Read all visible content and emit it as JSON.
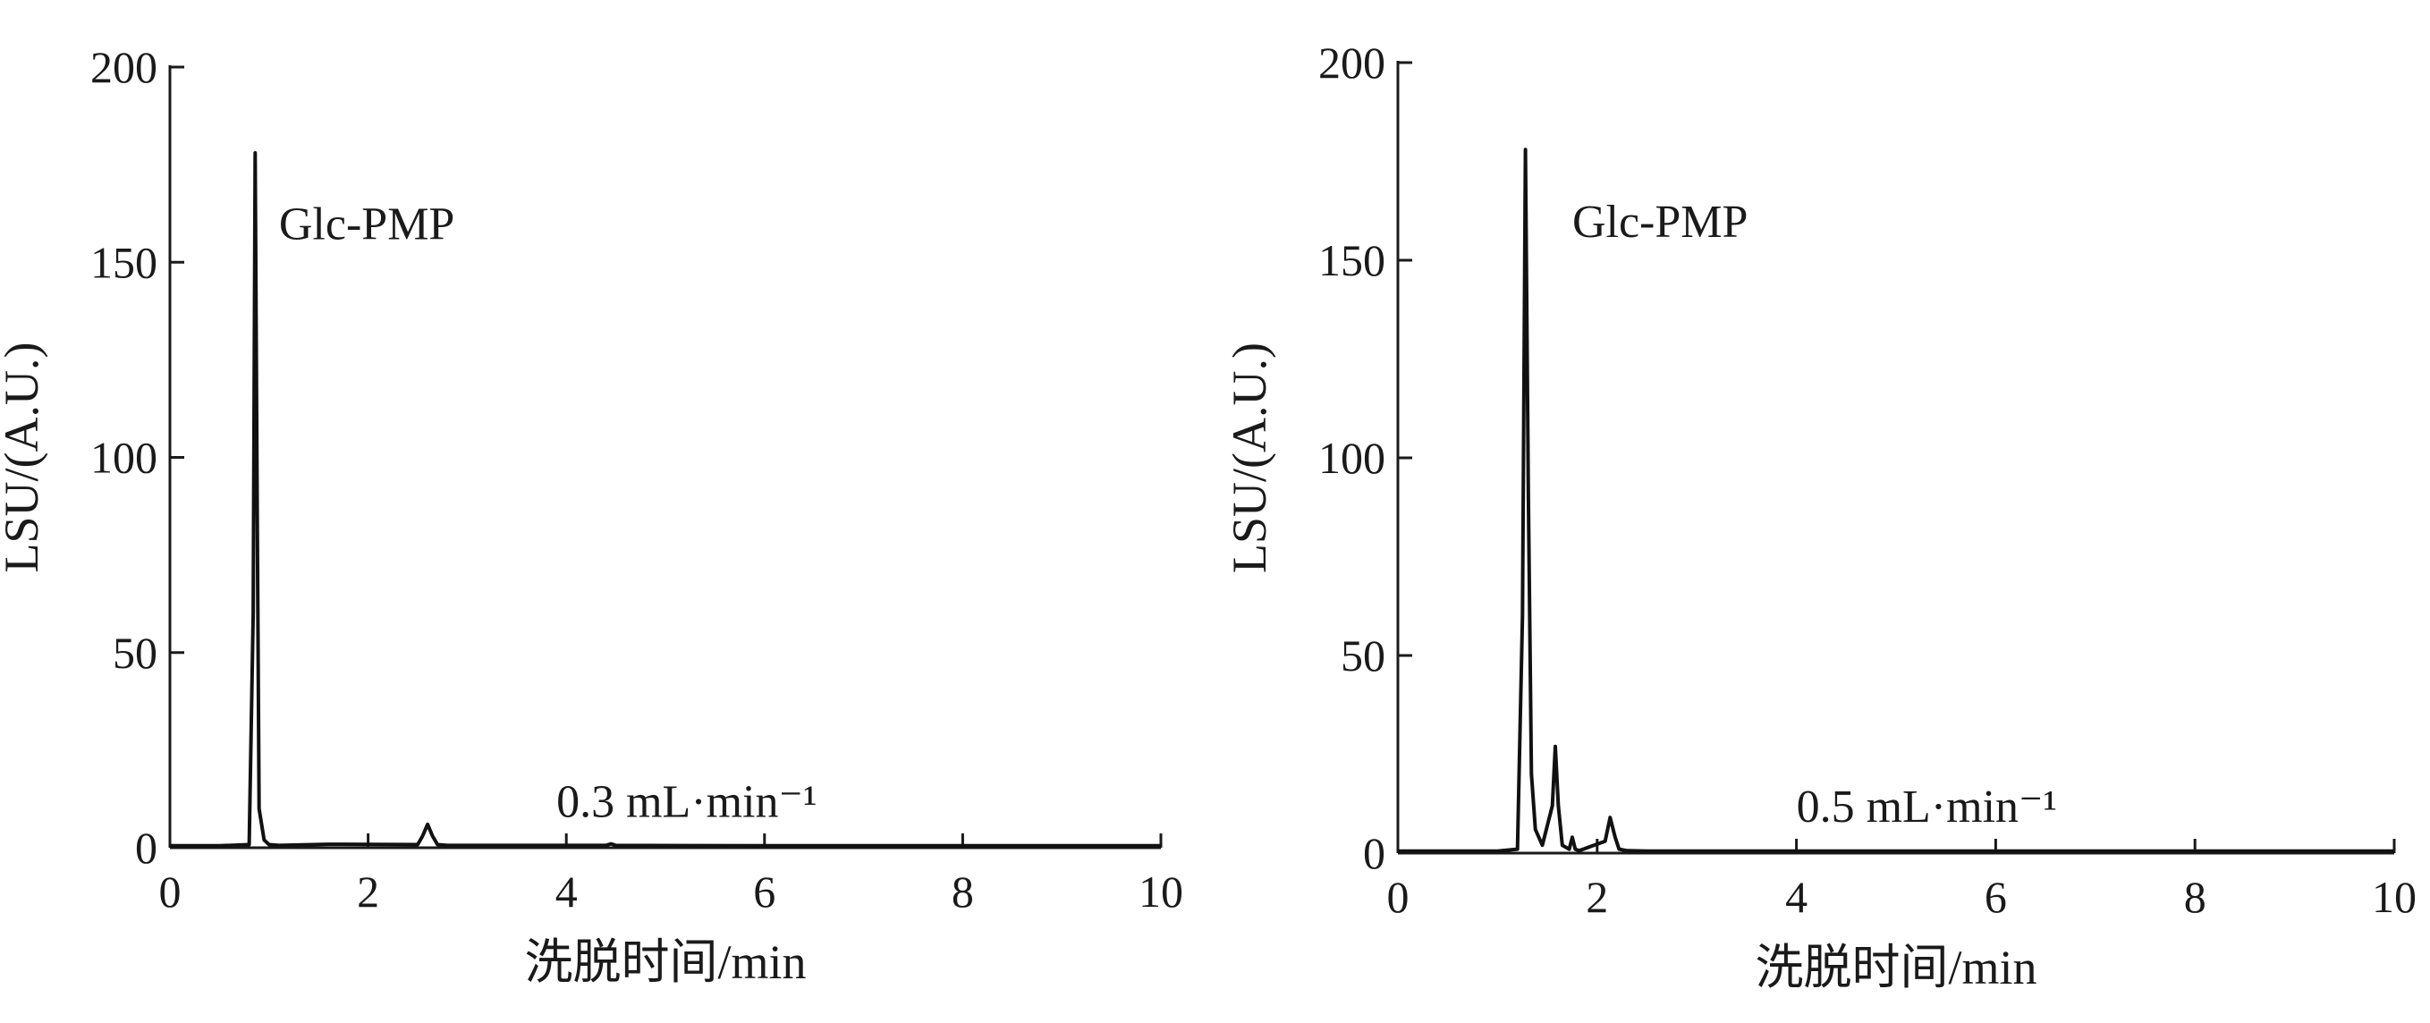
{
  "chart_data": [
    {
      "type": "line",
      "title": "",
      "xlabel": "洗脱时间/min",
      "ylabel": "LSU/(A.U.)",
      "xlim": [
        0,
        10
      ],
      "ylim": [
        0,
        200
      ],
      "xticks": [
        0,
        2,
        4,
        6,
        8,
        10
      ],
      "yticks": [
        0,
        50,
        100,
        150,
        200
      ],
      "grid": false,
      "line_color": "#111111",
      "annotations": [
        {
          "text": "Glc-PMP",
          "x": 1.1,
          "y": 160
        },
        {
          "text": "0.3 mL·min⁻¹",
          "x": 3.9,
          "y": 12
        }
      ],
      "series": [
        {
          "x": [
            0,
            0.5,
            0.8,
            0.84,
            0.86,
            0.88,
            0.9,
            0.95,
            1.0,
            1.1,
            1.6,
            2.5,
            2.55,
            2.6,
            2.65,
            2.7,
            2.8,
            4.4,
            4.45,
            4.5,
            6,
            8,
            10
          ],
          "values": [
            0.5,
            0.5,
            0.8,
            60,
            178,
            90,
            10,
            2,
            0.8,
            0.6,
            0.9,
            0.8,
            3,
            6,
            3,
            0.8,
            0.6,
            0.6,
            1.0,
            0.6,
            0.5,
            0.5,
            0.5
          ]
        }
      ]
    },
    {
      "type": "line",
      "title": "",
      "xlabel": "洗脱时间/min",
      "ylabel": "LSU/(A.U.)",
      "xlim": [
        0,
        10
      ],
      "ylim": [
        0,
        200
      ],
      "xticks": [
        0,
        2,
        4,
        6,
        8,
        10
      ],
      "yticks": [
        0,
        50,
        100,
        150,
        200
      ],
      "grid": false,
      "line_color": "#111111",
      "annotations": [
        {
          "text": "Glc-PMP",
          "x": 1.75,
          "y": 160
        },
        {
          "text": "0.5 mL·min⁻¹",
          "x": 4.0,
          "y": 12
        }
      ],
      "series": [
        {
          "x": [
            0,
            1.0,
            1.2,
            1.25,
            1.28,
            1.31,
            1.34,
            1.38,
            1.45,
            1.55,
            1.58,
            1.61,
            1.65,
            1.72,
            1.75,
            1.78,
            1.82,
            2.08,
            2.13,
            2.18,
            2.22,
            2.3,
            2.5,
            4,
            6,
            8,
            10
          ],
          "values": [
            0.5,
            0.5,
            1,
            60,
            178,
            90,
            20,
            6,
            2,
            12,
            27,
            12,
            2,
            1,
            4,
            1,
            0.6,
            3,
            9,
            4,
            1,
            0.6,
            0.5,
            0.5,
            0.5,
            0.5,
            0.5
          ]
        }
      ]
    }
  ]
}
